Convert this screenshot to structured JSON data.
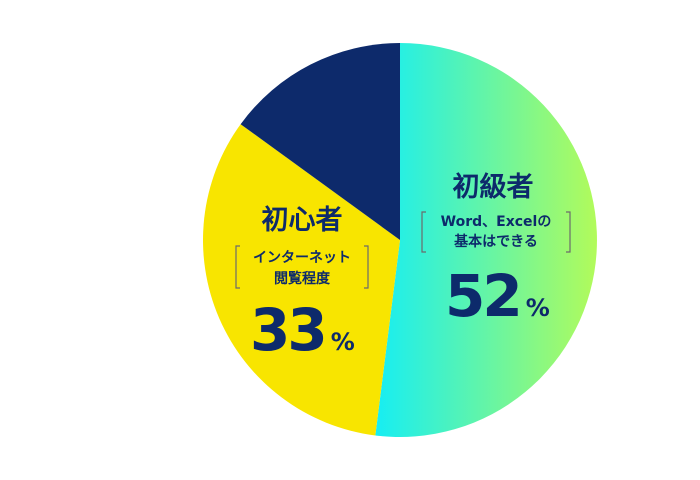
{
  "chart_data": {
    "type": "pie",
    "slices": [
      {
        "title": "初級者",
        "sub": [
          "Word、Excelの",
          "基本はできる"
        ],
        "value": 52,
        "unit": "%",
        "color_from": "#16eef3",
        "color_to": "#b2fb5a"
      },
      {
        "title": "初心者",
        "sub": [
          "インターネット",
          "閲覧程度"
        ],
        "value": 33,
        "unit": "%",
        "color": "#f8e500"
      },
      {
        "value": 15,
        "color": "#0d2a6b"
      }
    ],
    "value_label_color": "#0d2a6b"
  }
}
